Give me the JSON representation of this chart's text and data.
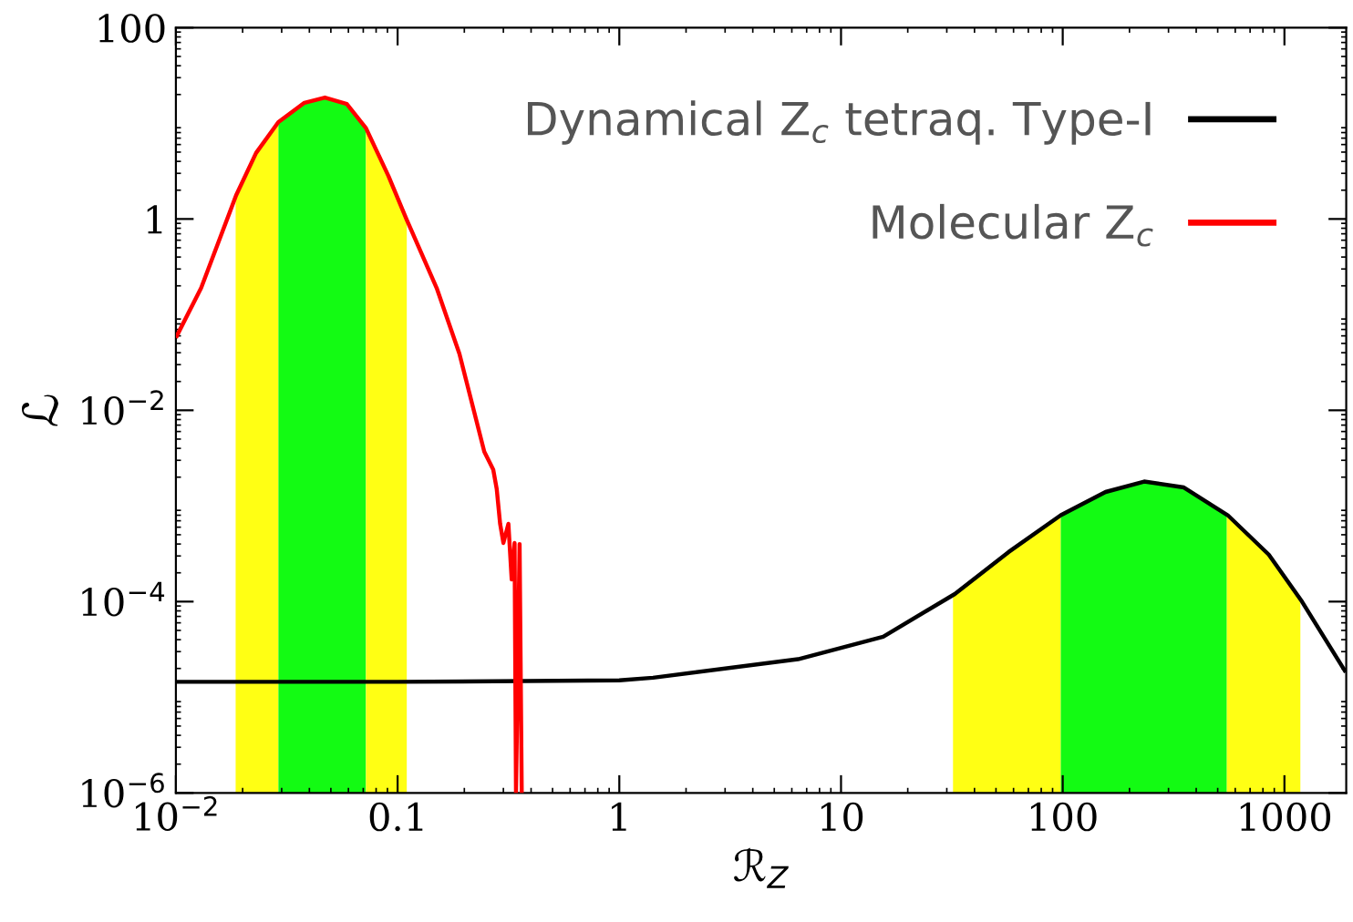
{
  "chart_data": {
    "type": "line",
    "xlabel": "ℛ$_{Z}$",
    "ylabel": "ℒ",
    "log": "xy",
    "xlim": [
      0.01,
      1900
    ],
    "ylim": [
      1e-06,
      100
    ],
    "xticks": [
      {
        "value": 0.01,
        "label": "10$^{−2}$"
      },
      0.1,
      1,
      10,
      100,
      1000
    ],
    "yticks": [
      {
        "value": 1e-06,
        "label": "10$^{−6}$"
      },
      {
        "value": 0.0001,
        "label": "10$^{−4}$"
      },
      {
        "value": 0.01,
        "label": "10$^{−2}$"
      },
      1,
      100
    ],
    "legend": "top right",
    "grid": false,
    "marker": "none",
    "line_style": "solid",
    "series": [
      {
        "name": "Dynamical Z$_{c}$ tetraq. Type-I",
        "color": "#000000",
        "x": [
          0.01,
          0.1,
          1,
          1.42,
          6.4,
          15.5,
          32.6,
          57,
          98,
          156,
          233,
          352,
          555,
          850,
          1200,
          1870
        ],
        "values": [
          1.45e-05,
          1.45e-05,
          1.5e-05,
          1.6e-05,
          2.5e-05,
          4.3e-05,
          0.00012,
          0.00033,
          0.0008,
          0.0014,
          0.0018,
          0.00156,
          0.0008,
          0.00031,
          0.0001,
          1.9e-05
        ]
      },
      {
        "name": "Molecular Z$_{c}$",
        "color": "#ff0000",
        "x": [
          0.0101,
          0.013,
          0.0187,
          0.023,
          0.029,
          0.038,
          0.047,
          0.059,
          0.072,
          0.091,
          0.11,
          0.15,
          0.19,
          0.246,
          0.27,
          0.28,
          0.29,
          0.3,
          0.316,
          0.327,
          0.337,
          0.342,
          0.355,
          0.363
        ],
        "values": [
          0.06,
          0.19,
          1.77,
          4.9,
          10.3,
          16.4,
          18.6,
          15.9,
          8.9,
          2.8,
          0.98,
          0.19,
          0.039,
          0.0037,
          0.0024,
          0.0015,
          0.00065,
          0.00041,
          0.00065,
          0.00017,
          0.00041,
          1e-06,
          0.0004,
          1e-06
        ]
      }
    ],
    "bands": [
      {
        "axis": "x",
        "from": 0.0186,
        "to": 0.029,
        "color": "#ffff14"
      },
      {
        "axis": "x",
        "from": 0.029,
        "to": 0.072,
        "color": "#13fb13"
      },
      {
        "axis": "x",
        "from": 0.072,
        "to": 0.11,
        "color": "#ffff14"
      },
      {
        "axis": "x",
        "from": 32,
        "to": 98,
        "color": "#ffff14"
      },
      {
        "axis": "x",
        "from": 98,
        "to": 550,
        "color": "#13fb13"
      },
      {
        "axis": "x",
        "from": 550,
        "to": 1180,
        "color": "#ffff14"
      }
    ]
  }
}
